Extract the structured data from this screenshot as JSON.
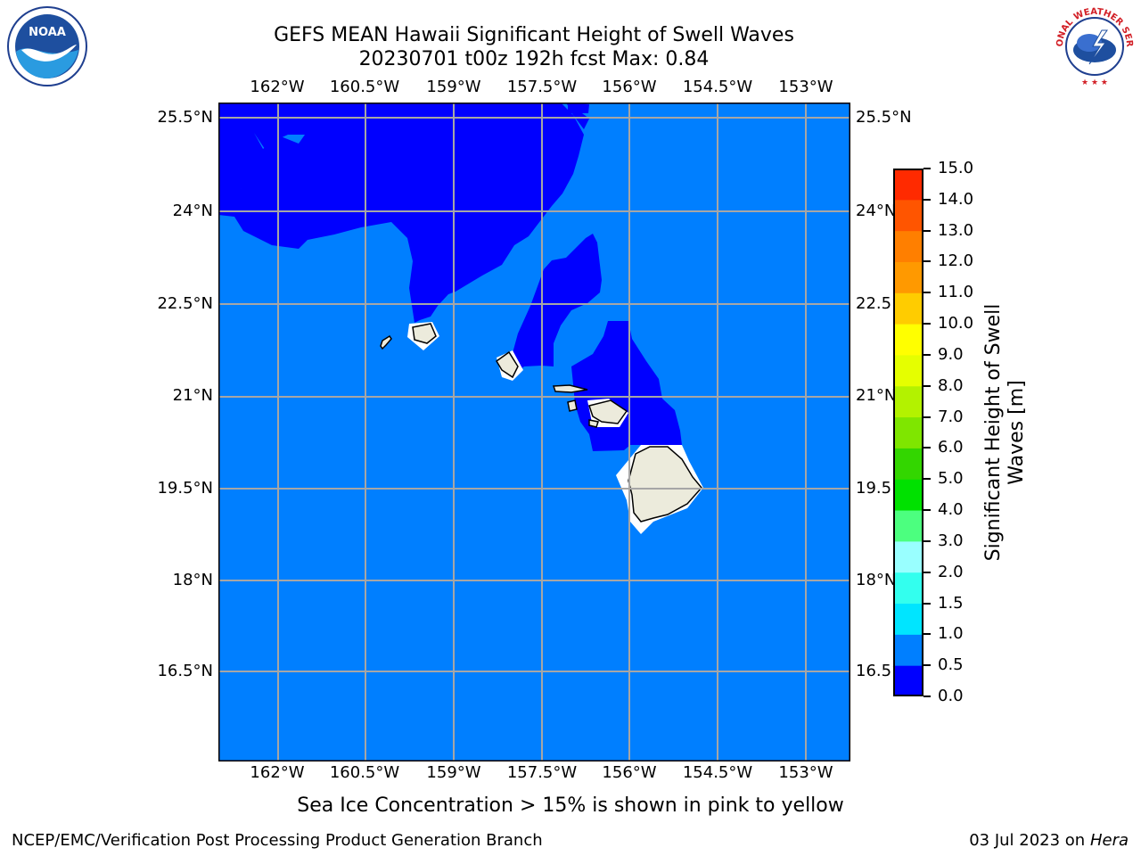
{
  "header": {
    "title": "GEFS MEAN Hawaii Significant Height of Swell Waves",
    "subtitle": "20230701 t00z 192h fcst   Max: 0.84"
  },
  "map": {
    "lon_ticks": [
      "162°W",
      "160.5°W",
      "159°W",
      "157.5°W",
      "156°W",
      "154.5°W",
      "153°W"
    ],
    "lat_ticks": [
      "25.5°N",
      "24°N",
      "22.5°N",
      "21°N",
      "19.5°N",
      "18°N",
      "16.5°N"
    ],
    "colors": {
      "ocean_low": "#0000ff",
      "ocean_mid": "#007fff",
      "land": "#ecebdc",
      "grid": "#a6a6a6"
    }
  },
  "colorbar": {
    "label": "Significant Height of Swell Waves [m]",
    "ticks": [
      "0.0",
      "0.5",
      "1.0",
      "1.5",
      "2.0",
      "3.0",
      "4.0",
      "5.0",
      "6.0",
      "7.0",
      "8.0",
      "9.0",
      "10.0",
      "11.0",
      "12.0",
      "13.0",
      "14.0",
      "15.0"
    ],
    "colors": [
      "#0000ff",
      "#007fff",
      "#00e5ff",
      "#33ffee",
      "#99ffff",
      "#4cff7f",
      "#00e100",
      "#33d600",
      "#7fe600",
      "#b3f200",
      "#e5ff00",
      "#ffff00",
      "#ffcc00",
      "#ff9900",
      "#ff7f00",
      "#ff5500",
      "#ff2a00"
    ]
  },
  "footer": {
    "note": "Sea Ice Concentration > 15% is shown in pink to yellow",
    "left": "NCEP/EMC/Verification Post Processing Product Generation Branch",
    "date": "03 Jul 2023 on",
    "host": "Hera"
  },
  "logos": {
    "noaa_text": "NOAA",
    "nws_text": "NATIONAL WEATHER SERVICE"
  }
}
